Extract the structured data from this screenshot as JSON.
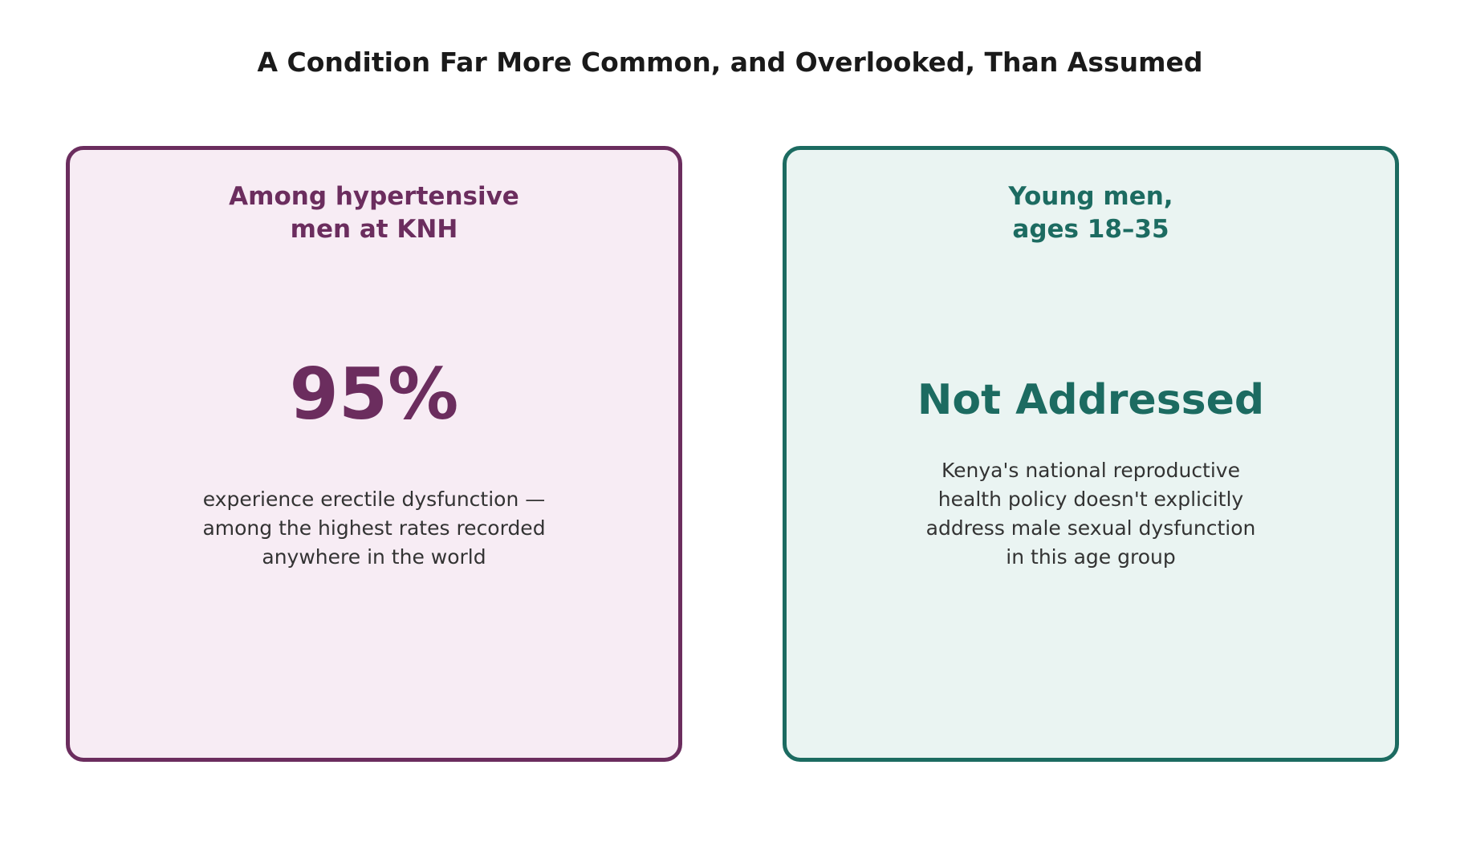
{
  "title": "A Condition Far More Common, and Overlooked, Than Assumed",
  "cards": [
    {
      "heading": "Among hypertensive\nmen at KNH",
      "value": "95%",
      "description": "experience erectile dysfunction —\namong the highest rates recorded\nanywhere in the world",
      "accent_color": "#6b2d5e",
      "background_color": "#f7ecf4"
    },
    {
      "heading": "Young men,\nages 18–35",
      "value": "Not Addressed",
      "description": "Kenya's national reproductive\nhealth policy doesn't explicitly\naddress male sexual dysfunction\nin this age group",
      "accent_color": "#1c6b61",
      "background_color": "#eaf4f2"
    }
  ]
}
